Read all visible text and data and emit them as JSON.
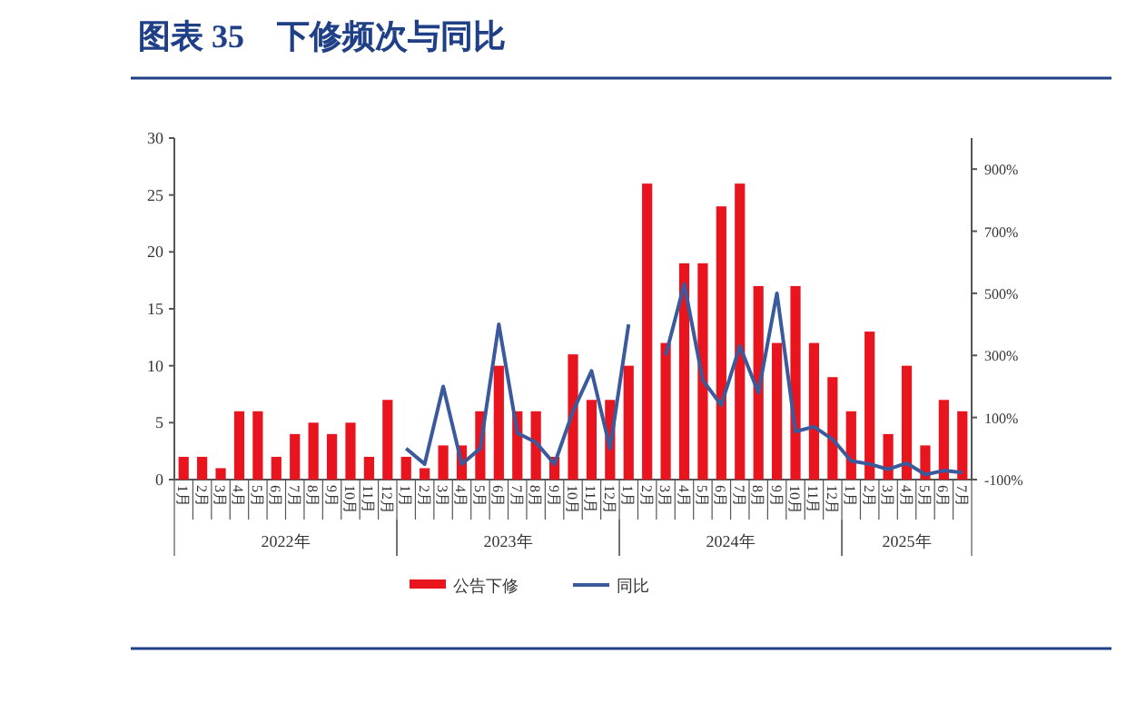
{
  "chart_data": {
    "type": "bar",
    "title": "图表 35　下修频次与同比",
    "categories": [
      "1月",
      "2月",
      "3月",
      "4月",
      "5月",
      "6月",
      "7月",
      "8月",
      "9月",
      "10月",
      "11月",
      "12月",
      "1月",
      "2月",
      "3月",
      "4月",
      "5月",
      "6月",
      "7月",
      "8月",
      "9月",
      "10月",
      "11月",
      "12月",
      "1月",
      "2月",
      "3月",
      "4月",
      "5月",
      "6月",
      "7月",
      "8月",
      "9月",
      "10月",
      "11月",
      "12月",
      "1月",
      "2月",
      "3月",
      "4月",
      "5月",
      "6月",
      "7月"
    ],
    "series": [
      {
        "name": "公告下修",
        "color": "#e8141e",
        "values": [
          2,
          2,
          1,
          6,
          6,
          2,
          4,
          5,
          4,
          5,
          2,
          7,
          2,
          1,
          3,
          3,
          6,
          10,
          6,
          6,
          2,
          11,
          7,
          7,
          10,
          26,
          12,
          19,
          19,
          24,
          26,
          17,
          12,
          17,
          12,
          9,
          6,
          13,
          4,
          10,
          3,
          7,
          6
        ]
      },
      {
        "name": "同比",
        "type": "line",
        "axis": "y2",
        "color": "#3a5a9c",
        "values": [
          null,
          null,
          null,
          null,
          null,
          null,
          null,
          null,
          null,
          null,
          null,
          null,
          0,
          -50,
          200,
          -50,
          0,
          400,
          50,
          20,
          -50,
          120,
          250,
          0,
          400,
          null,
          300,
          530,
          220,
          140,
          330,
          180,
          500,
          55,
          70,
          30,
          -40,
          -50,
          -67,
          -47,
          -84,
          -71,
          -77
        ]
      }
    ],
    "ylim": [
      0,
      30
    ],
    "yticks": [
      0,
      5,
      10,
      15,
      20,
      25,
      30
    ],
    "y2lim": [
      -100,
      1000
    ],
    "y2ticks": [
      {
        "value": -100,
        "label": "-100%"
      },
      {
        "value": 100,
        "label": "100%"
      },
      {
        "value": 300,
        "label": "300%"
      },
      {
        "value": 500,
        "label": "500%"
      },
      {
        "value": 700,
        "label": "700%"
      },
      {
        "value": 900,
        "label": "900%"
      }
    ],
    "annotations": [
      "2022年",
      "2023年",
      "2024年",
      "2025年"
    ],
    "legend": "bottom"
  }
}
